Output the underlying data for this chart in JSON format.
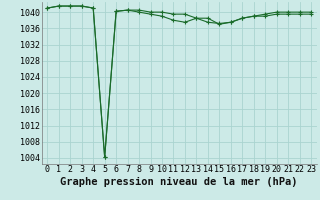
{
  "title": "Graphe pression niveau de la mer (hPa)",
  "background_color": "#cceae7",
  "grid_color": "#aad4d0",
  "line_color": "#1a6b2a",
  "marker_color": "#1a6b2a",
  "x_values": [
    0,
    1,
    2,
    3,
    4,
    5,
    6,
    7,
    8,
    9,
    10,
    11,
    12,
    13,
    14,
    15,
    16,
    17,
    18,
    19,
    20,
    21,
    22,
    23
  ],
  "y_values": [
    1041.0,
    1041.5,
    1041.5,
    1041.5,
    1041.0,
    1004.2,
    1040.2,
    1040.5,
    1040.0,
    1039.5,
    1039.0,
    1038.0,
    1037.5,
    1038.5,
    1038.5,
    1037.0,
    1037.5,
    1038.5,
    1039.0,
    1039.0,
    1039.5,
    1039.5,
    1039.5,
    1039.5
  ],
  "y2_values": [
    1041.0,
    1041.5,
    1041.5,
    1041.5,
    1041.0,
    1004.2,
    1040.2,
    1040.5,
    1040.5,
    1040.0,
    1040.0,
    1039.5,
    1039.5,
    1038.5,
    1037.5,
    1037.2,
    1037.5,
    1038.5,
    1039.0,
    1039.5,
    1040.0,
    1040.0,
    1040.0,
    1040.0
  ],
  "ylim": [
    1002.5,
    1042.5
  ],
  "yticks": [
    1004,
    1008,
    1012,
    1016,
    1020,
    1024,
    1028,
    1032,
    1036,
    1040
  ],
  "xlim": [
    -0.5,
    23.5
  ],
  "xticks": [
    0,
    1,
    2,
    3,
    4,
    5,
    6,
    7,
    8,
    9,
    10,
    11,
    12,
    13,
    14,
    15,
    16,
    17,
    18,
    19,
    20,
    21,
    22,
    23
  ],
  "title_fontsize": 7.5,
  "tick_fontsize": 6.0,
  "ylabel_fontsize": 6.0
}
